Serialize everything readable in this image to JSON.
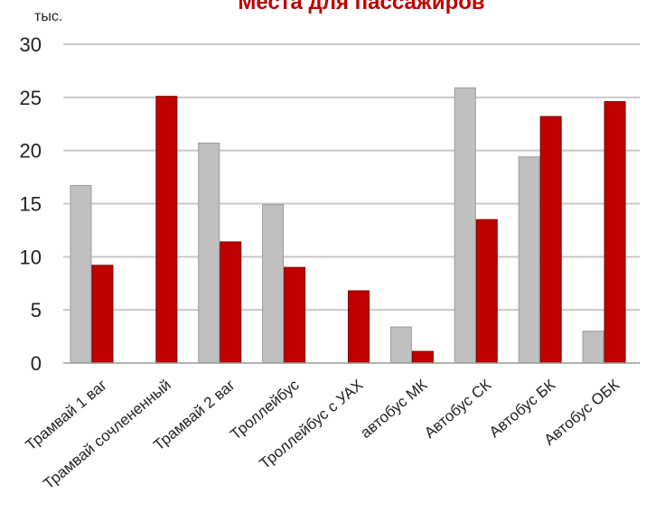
{
  "chart_data": {
    "type": "bar",
    "title": "Места для пассажиров",
    "ylabel": "тыс.",
    "xlabel": "",
    "categories": [
      "Трамвай 1 ваг",
      "Трамвай сочлененный",
      "Трамвай 2 ваг",
      "Троллейбус",
      "Троллейбус с УАХ",
      "автобус МК",
      "Автобус СК",
      "Автобус БК",
      "Автобус ОБК"
    ],
    "series": [
      {
        "color": "#c0c0c0",
        "values": [
          16.7,
          0,
          20.7,
          14.9,
          0,
          3.4,
          25.9,
          19.4,
          3.0
        ]
      },
      {
        "color": "#c00000",
        "values": [
          9.2,
          25.1,
          11.4,
          9.0,
          6.8,
          1.1,
          13.5,
          23.2,
          24.6
        ]
      }
    ],
    "ylim": [
      0,
      30
    ],
    "yticks": [
      "0",
      "5",
      "10",
      "15",
      "20",
      "25",
      "30"
    ],
    "grid": true,
    "legend": "none"
  }
}
